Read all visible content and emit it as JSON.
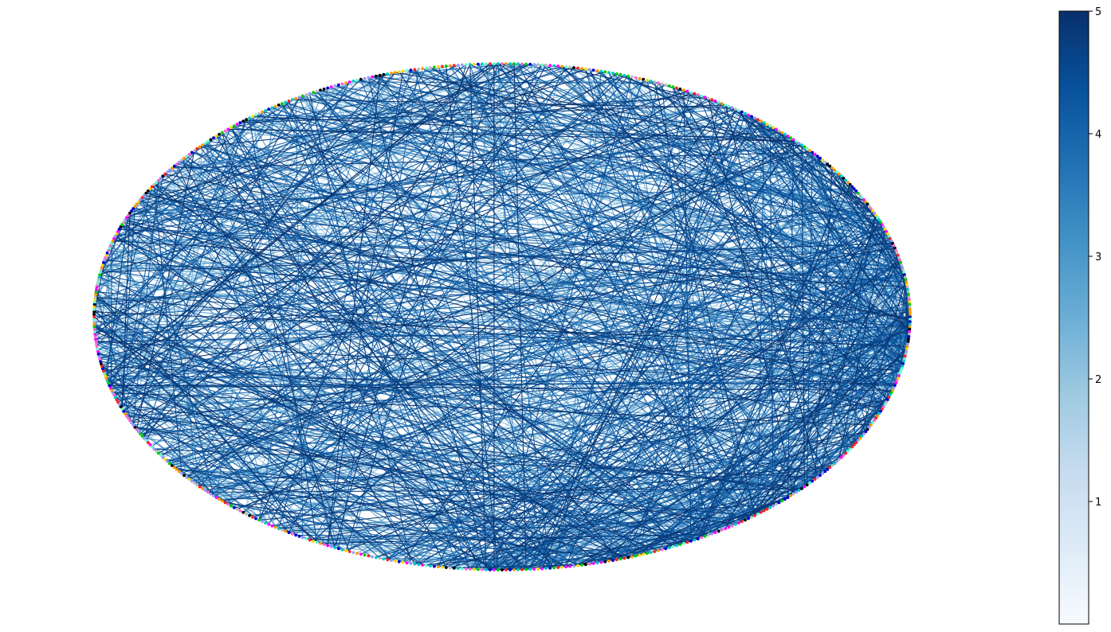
{
  "chart_data": {
    "type": "network",
    "layout": "circular",
    "title": "",
    "node_count": 640,
    "node_colors": [
      "#000000",
      "#ff00ff",
      "#00c8c8",
      "#ffd700",
      "#00cc00",
      "#ff2222",
      "#9999ff",
      "#ff9900",
      "#bbbbbb",
      "#0000cc",
      "#ff66cc",
      "#66ffcc"
    ],
    "edge_count": 1200,
    "edge_weight_range": [
      0,
      5
    ],
    "colorbar": {
      "colormap": "Blues",
      "range": [
        0,
        5
      ],
      "tick_values": [
        1,
        2,
        3,
        4,
        5
      ],
      "tick_labels": [
        "1",
        "2",
        "3",
        "4",
        "5"
      ],
      "ramp_colors": [
        "#f7fbff",
        "#deebf7",
        "#c6dbef",
        "#9ecae1",
        "#6baed6",
        "#4292c6",
        "#2171b5",
        "#08519c",
        "#08306b"
      ]
    }
  }
}
